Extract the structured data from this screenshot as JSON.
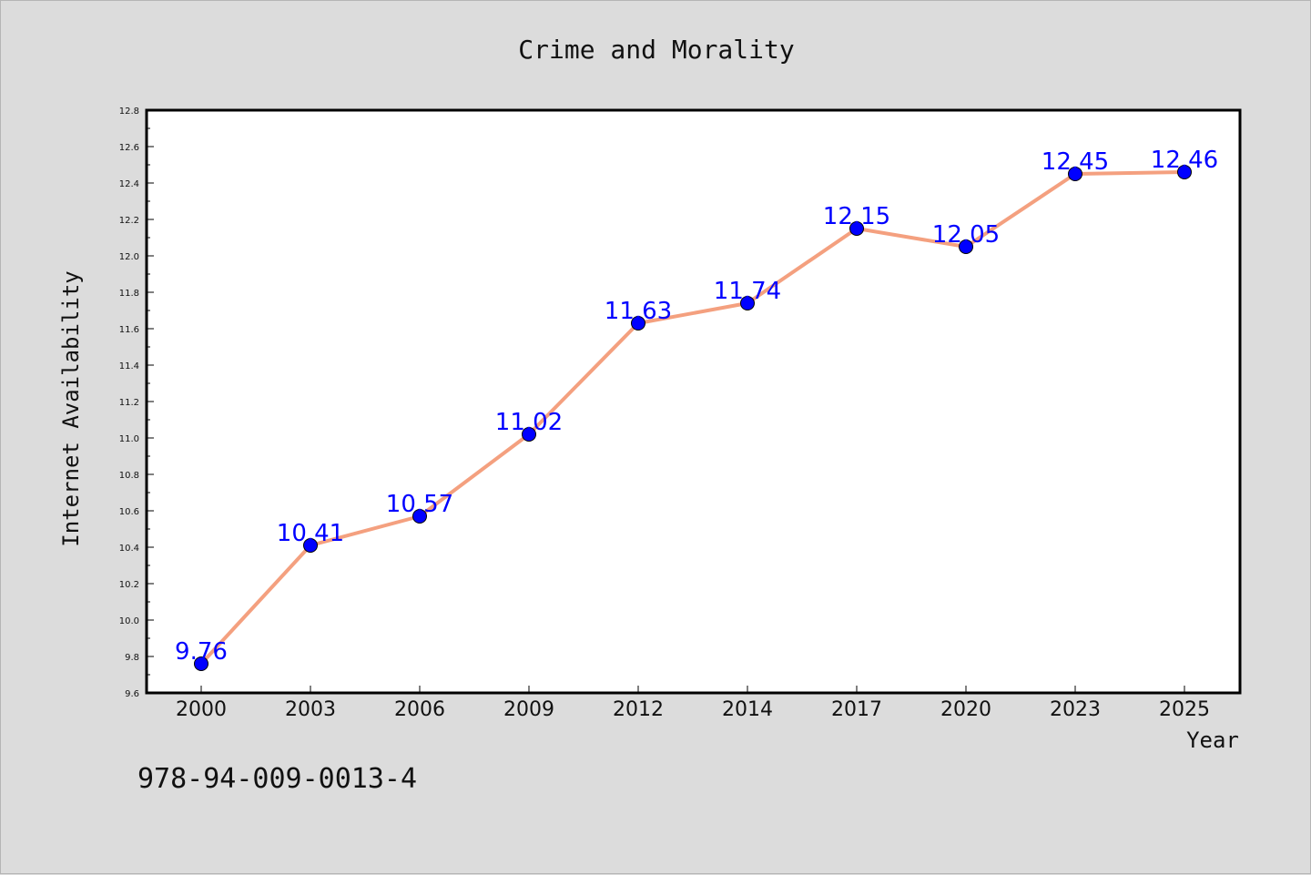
{
  "chart_data": {
    "type": "line",
    "title": "Crime and Morality",
    "xlabel": "Year",
    "ylabel": "Internet Availability",
    "categories": [
      "2000",
      "2003",
      "2006",
      "2009",
      "2012",
      "2014",
      "2017",
      "2020",
      "2023",
      "2025"
    ],
    "values": [
      9.76,
      10.41,
      10.57,
      11.02,
      11.63,
      11.74,
      12.15,
      12.05,
      12.45,
      12.46
    ],
    "data_labels": [
      "9.76",
      "10.41",
      "10.57",
      "11.02",
      "11.63",
      "11.74",
      "12.15",
      "12.05",
      "12.45",
      "12.46"
    ],
    "ylim": [
      9.6,
      12.8
    ],
    "yticks": [
      "9.6",
      "9.8",
      "10.0",
      "10.2",
      "10.4",
      "10.6",
      "10.8",
      "11.0",
      "11.2",
      "11.4",
      "11.6",
      "11.8",
      "12.0",
      "12.2",
      "12.4",
      "12.6",
      "12.8"
    ],
    "grid": false,
    "legend": "none",
    "colors": {
      "line": "#f4a07f",
      "marker": "#0000ff",
      "marker_edge": "#000000",
      "data_label": "#0000ff",
      "plot_background": "#ffffff",
      "figure_background": "#dcdcdc"
    }
  },
  "footer": {
    "isbn": "978-94-009-0013-4"
  }
}
